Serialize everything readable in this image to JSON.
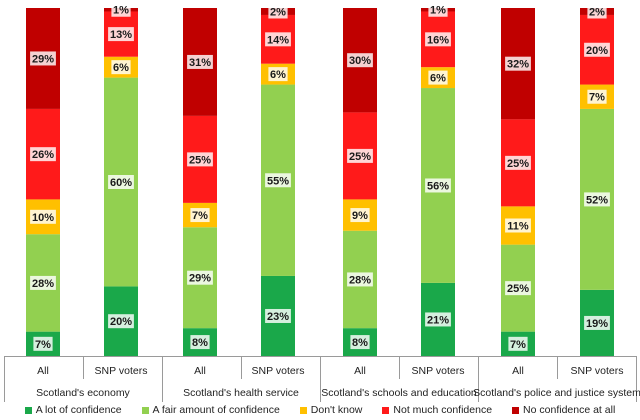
{
  "chart_data": {
    "type": "bar",
    "stacked": true,
    "ylim": [
      0,
      100
    ],
    "bars": [
      {
        "category": "All",
        "group": "Scotland's economy"
      },
      {
        "category": "SNP voters",
        "group": "Scotland's economy"
      },
      {
        "category": "All",
        "group": "Scotland's health service"
      },
      {
        "category": "SNP voters",
        "group": "Scotland's health service"
      },
      {
        "category": "All",
        "group": "Scotland's schools and education"
      },
      {
        "category": "SNP voters",
        "group": "Scotland's schools and education"
      },
      {
        "category": "All",
        "group": "Scotland's police and justice system"
      },
      {
        "category": "SNP voters",
        "group": "Scotland's police and justice system"
      }
    ],
    "groups": [
      "Scotland's economy",
      "Scotland's health service",
      "Scotland's schools and education",
      "Scotland's police and justice system"
    ],
    "series": [
      {
        "name": "A lot of confidence",
        "color": "#1aa84a",
        "values": [
          7,
          20,
          8,
          23,
          8,
          21,
          7,
          19
        ]
      },
      {
        "name": "A fair amount of confidence",
        "color": "#92d050",
        "values": [
          28,
          60,
          29,
          55,
          28,
          56,
          25,
          52
        ]
      },
      {
        "name": "Don't know",
        "color": "#ffc000",
        "values": [
          10,
          6,
          7,
          6,
          9,
          6,
          11,
          7
        ]
      },
      {
        "name": "Not much confidence",
        "color": "#ff1a1a",
        "values": [
          26,
          13,
          25,
          14,
          25,
          16,
          25,
          20
        ]
      },
      {
        "name": "No confidence at all",
        "color": "#c00000",
        "values": [
          29,
          1,
          31,
          2,
          30,
          1,
          32,
          2
        ]
      }
    ],
    "value_suffix": "%",
    "legend_position": "bottom"
  }
}
